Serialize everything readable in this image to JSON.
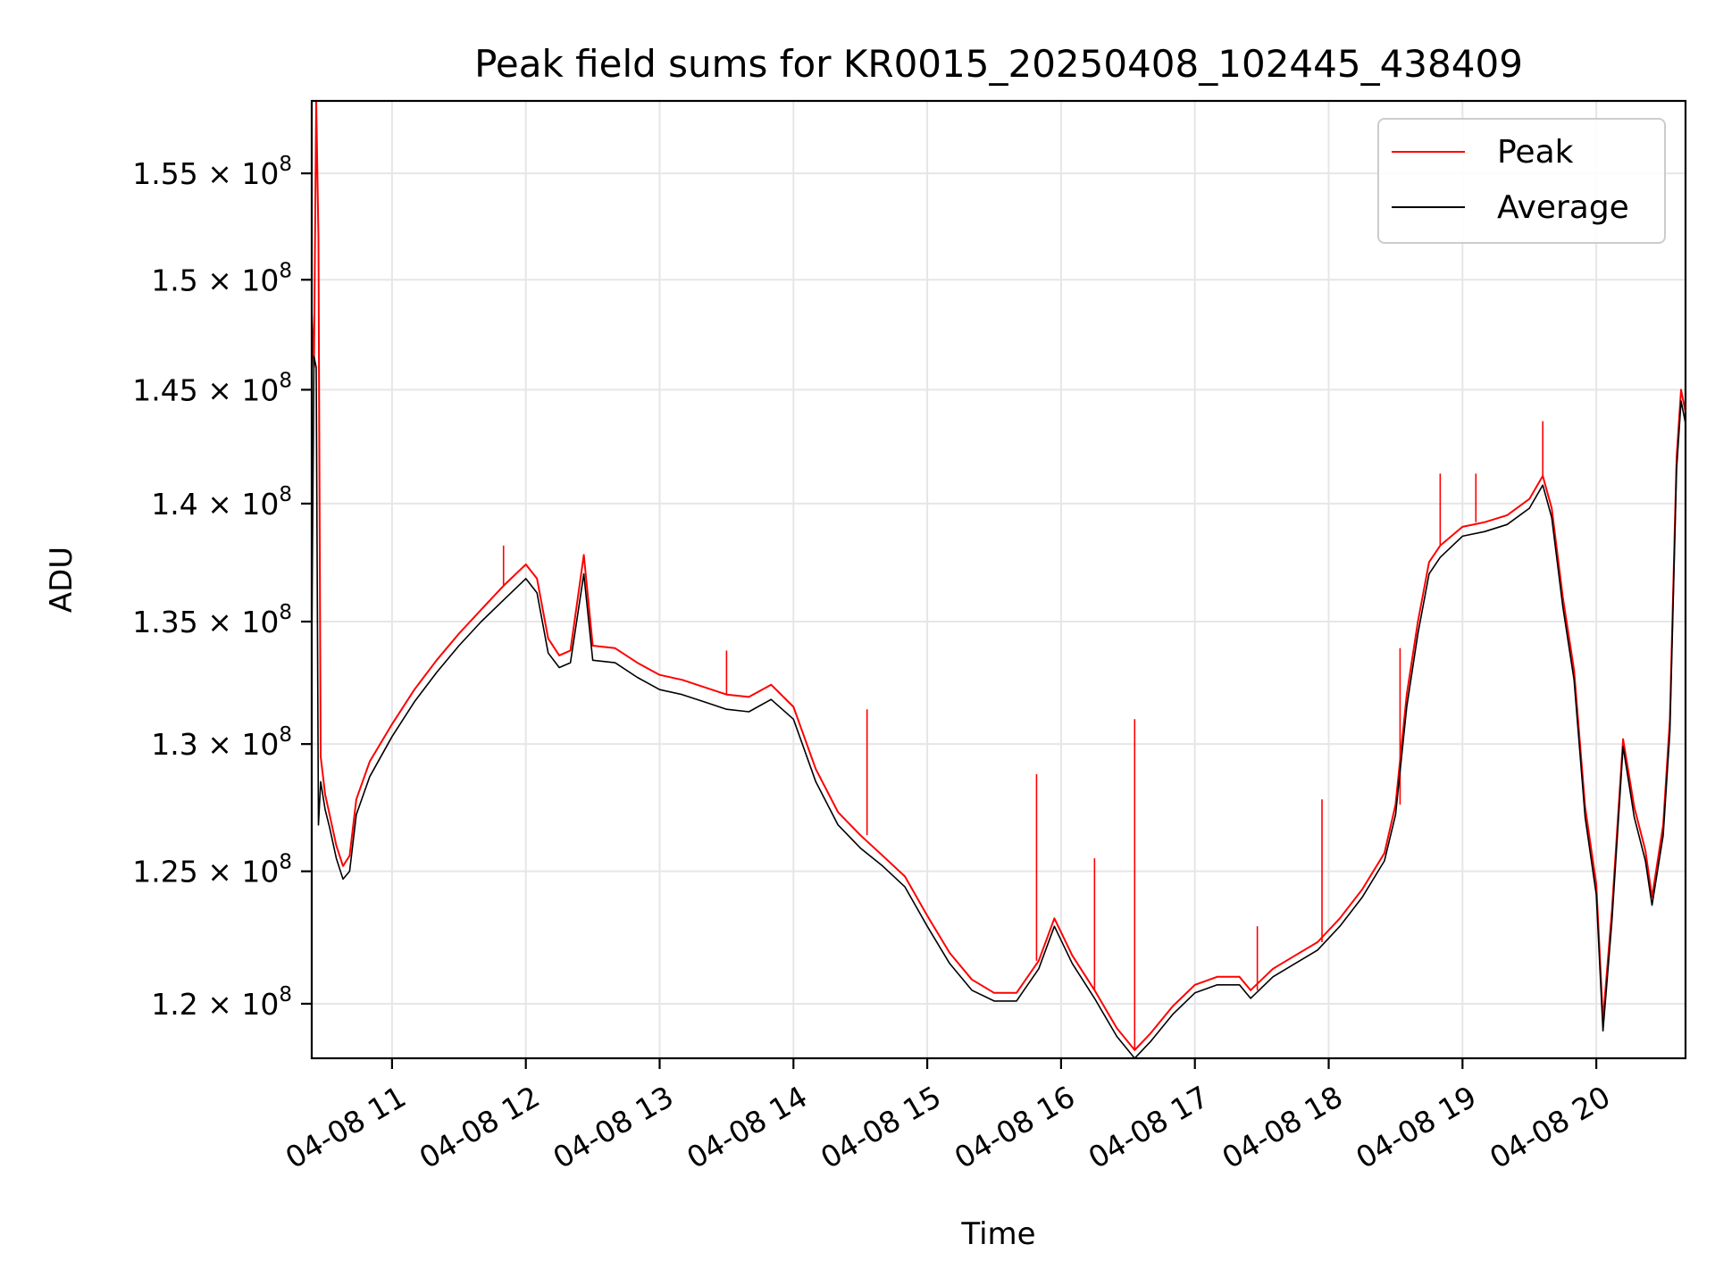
{
  "chart_data": {
    "type": "line",
    "title": "Peak field sums for KR0015_20250408_102445_438409",
    "xlabel": "Time",
    "ylabel": "ADU",
    "x_range": [
      "2025-04-08 10:24",
      "2025-04-08 20:40"
    ],
    "ylim": [
      118000000,
      158500000
    ],
    "y_scale": "log",
    "grid": true,
    "legend_position": "upper right",
    "x_ticks": [
      {
        "label": "04-08 11",
        "time": "2025-04-08 11:00"
      },
      {
        "label": "04-08 12",
        "time": "2025-04-08 12:00"
      },
      {
        "label": "04-08 13",
        "time": "2025-04-08 13:00"
      },
      {
        "label": "04-08 14",
        "time": "2025-04-08 14:00"
      },
      {
        "label": "04-08 15",
        "time": "2025-04-08 15:00"
      },
      {
        "label": "04-08 16",
        "time": "2025-04-08 16:00"
      },
      {
        "label": "04-08 17",
        "time": "2025-04-08 17:00"
      },
      {
        "label": "04-08 18",
        "time": "2025-04-08 18:00"
      },
      {
        "label": "04-08 19",
        "time": "2025-04-08 19:00"
      },
      {
        "label": "04-08 20",
        "time": "2025-04-08 20:00"
      }
    ],
    "y_ticks": [
      {
        "mantissa": "1.2",
        "exp": "8",
        "value": 120000000
      },
      {
        "mantissa": "1.25",
        "exp": "8",
        "value": 125000000
      },
      {
        "mantissa": "1.3",
        "exp": "8",
        "value": 130000000
      },
      {
        "mantissa": "1.35",
        "exp": "8",
        "value": 135000000
      },
      {
        "mantissa": "1.4",
        "exp": "8",
        "value": 140000000
      },
      {
        "mantissa": "1.45",
        "exp": "8",
        "value": 145000000
      },
      {
        "mantissa": "1.5",
        "exp": "8",
        "value": 150000000
      },
      {
        "mantissa": "1.55",
        "exp": "8",
        "value": 155000000
      }
    ],
    "series": [
      {
        "name": "Peak",
        "color": "#ff0000",
        "points": [
          [
            "2025-04-08 10:24",
            148500000
          ],
          [
            "2025-04-08 10:25",
            146000000
          ],
          [
            "2025-04-08 10:26",
            158500000
          ],
          [
            "2025-04-08 10:27",
            152000000
          ],
          [
            "2025-04-08 10:28",
            129500000
          ],
          [
            "2025-04-08 10:30",
            128000000
          ],
          [
            "2025-04-08 10:32",
            127200000
          ],
          [
            "2025-04-08 10:35",
            126000000
          ],
          [
            "2025-04-08 10:38",
            125200000
          ],
          [
            "2025-04-08 10:41",
            125600000
          ],
          [
            "2025-04-08 10:44",
            127800000
          ],
          [
            "2025-04-08 10:50",
            129300000
          ],
          [
            "2025-04-08 11:00",
            130800000
          ],
          [
            "2025-04-08 11:10",
            132200000
          ],
          [
            "2025-04-08 11:20",
            133400000
          ],
          [
            "2025-04-08 11:30",
            134500000
          ],
          [
            "2025-04-08 11:40",
            135500000
          ],
          [
            "2025-04-08 11:50",
            136500000
          ],
          [
            "2025-04-08 12:00",
            137400000
          ],
          [
            "2025-04-08 12:05",
            136800000
          ],
          [
            "2025-04-08 12:10",
            134300000
          ],
          [
            "2025-04-08 12:15",
            133600000
          ],
          [
            "2025-04-08 12:20",
            133800000
          ],
          [
            "2025-04-08 12:26",
            137800000
          ],
          [
            "2025-04-08 12:30",
            134000000
          ],
          [
            "2025-04-08 12:40",
            133900000
          ],
          [
            "2025-04-08 12:50",
            133300000
          ],
          [
            "2025-04-08 13:00",
            132800000
          ],
          [
            "2025-04-08 13:10",
            132600000
          ],
          [
            "2025-04-08 13:20",
            132300000
          ],
          [
            "2025-04-08 13:30",
            132000000
          ],
          [
            "2025-04-08 13:40",
            131900000
          ],
          [
            "2025-04-08 13:50",
            132400000
          ],
          [
            "2025-04-08 14:00",
            131500000
          ],
          [
            "2025-04-08 14:10",
            129000000
          ],
          [
            "2025-04-08 14:20",
            127300000
          ],
          [
            "2025-04-08 14:30",
            126400000
          ],
          [
            "2025-04-08 14:40",
            125600000
          ],
          [
            "2025-04-08 14:50",
            124800000
          ],
          [
            "2025-04-08 15:00",
            123300000
          ],
          [
            "2025-04-08 15:10",
            121900000
          ],
          [
            "2025-04-08 15:20",
            120900000
          ],
          [
            "2025-04-08 15:30",
            120400000
          ],
          [
            "2025-04-08 15:40",
            120400000
          ],
          [
            "2025-04-08 15:50",
            121600000
          ],
          [
            "2025-04-08 15:57",
            123200000
          ],
          [
            "2025-04-08 16:05",
            121800000
          ],
          [
            "2025-04-08 16:15",
            120500000
          ],
          [
            "2025-04-08 16:25",
            119100000
          ],
          [
            "2025-04-08 16:33",
            118300000
          ],
          [
            "2025-04-08 16:40",
            118900000
          ],
          [
            "2025-04-08 16:50",
            119900000
          ],
          [
            "2025-04-08 17:00",
            120700000
          ],
          [
            "2025-04-08 17:10",
            121000000
          ],
          [
            "2025-04-08 17:20",
            121000000
          ],
          [
            "2025-04-08 17:25",
            120500000
          ],
          [
            "2025-04-08 17:35",
            121300000
          ],
          [
            "2025-04-08 17:45",
            121800000
          ],
          [
            "2025-04-08 17:55",
            122300000
          ],
          [
            "2025-04-08 18:05",
            123200000
          ],
          [
            "2025-04-08 18:15",
            124300000
          ],
          [
            "2025-04-08 18:25",
            125700000
          ],
          [
            "2025-04-08 18:30",
            127600000
          ],
          [
            "2025-04-08 18:35",
            132000000
          ],
          [
            "2025-04-08 18:40",
            135000000
          ],
          [
            "2025-04-08 18:45",
            137500000
          ],
          [
            "2025-04-08 18:50",
            138200000
          ],
          [
            "2025-04-08 19:00",
            139000000
          ],
          [
            "2025-04-08 19:10",
            139200000
          ],
          [
            "2025-04-08 19:20",
            139500000
          ],
          [
            "2025-04-08 19:30",
            140200000
          ],
          [
            "2025-04-08 19:36",
            141200000
          ],
          [
            "2025-04-08 19:40",
            139800000
          ],
          [
            "2025-04-08 19:45",
            136000000
          ],
          [
            "2025-04-08 19:50",
            133000000
          ],
          [
            "2025-04-08 19:55",
            127500000
          ],
          [
            "2025-04-08 20:00",
            124500000
          ],
          [
            "2025-04-08 20:03",
            119400000
          ],
          [
            "2025-04-08 20:07",
            123500000
          ],
          [
            "2025-04-08 20:12",
            130200000
          ],
          [
            "2025-04-08 20:17",
            127500000
          ],
          [
            "2025-04-08 20:22",
            125800000
          ],
          [
            "2025-04-08 20:25",
            124000000
          ],
          [
            "2025-04-08 20:30",
            126800000
          ],
          [
            "2025-04-08 20:33",
            131000000
          ],
          [
            "2025-04-08 20:36",
            142000000
          ],
          [
            "2025-04-08 20:38",
            145000000
          ],
          [
            "2025-04-08 20:40",
            144000000
          ]
        ],
        "spikes": [
          [
            "2025-04-08 10:26",
            158500000
          ],
          [
            "2025-04-08 11:50",
            138200000
          ],
          [
            "2025-04-08 12:26",
            137800000
          ],
          [
            "2025-04-08 13:30",
            133800000
          ],
          [
            "2025-04-08 14:33",
            131400000
          ],
          [
            "2025-04-08 15:49",
            128800000
          ],
          [
            "2025-04-08 16:15",
            125500000
          ],
          [
            "2025-04-08 16:33",
            131000000
          ],
          [
            "2025-04-08 17:28",
            122900000
          ],
          [
            "2025-04-08 17:57",
            127800000
          ],
          [
            "2025-04-08 18:32",
            133900000
          ],
          [
            "2025-04-08 18:50",
            141300000
          ],
          [
            "2025-04-08 19:06",
            141300000
          ],
          [
            "2025-04-08 19:36",
            143600000
          ]
        ]
      },
      {
        "name": "Average",
        "color": "#000000",
        "points": [
          [
            "2025-04-08 10:24",
            134000000
          ],
          [
            "2025-04-08 10:25",
            146500000
          ],
          [
            "2025-04-08 10:26",
            146000000
          ],
          [
            "2025-04-08 10:27",
            126800000
          ],
          [
            "2025-04-08 10:28",
            128500000
          ],
          [
            "2025-04-08 10:30",
            127400000
          ],
          [
            "2025-04-08 10:32",
            126700000
          ],
          [
            "2025-04-08 10:35",
            125500000
          ],
          [
            "2025-04-08 10:38",
            124700000
          ],
          [
            "2025-04-08 10:41",
            125000000
          ],
          [
            "2025-04-08 10:44",
            127200000
          ],
          [
            "2025-04-08 10:50",
            128700000
          ],
          [
            "2025-04-08 11:00",
            130300000
          ],
          [
            "2025-04-08 11:10",
            131700000
          ],
          [
            "2025-04-08 11:20",
            132900000
          ],
          [
            "2025-04-08 11:30",
            134000000
          ],
          [
            "2025-04-08 11:40",
            135000000
          ],
          [
            "2025-04-08 11:50",
            135900000
          ],
          [
            "2025-04-08 12:00",
            136800000
          ],
          [
            "2025-04-08 12:05",
            136200000
          ],
          [
            "2025-04-08 12:10",
            133700000
          ],
          [
            "2025-04-08 12:15",
            133100000
          ],
          [
            "2025-04-08 12:20",
            133300000
          ],
          [
            "2025-04-08 12:26",
            137000000
          ],
          [
            "2025-04-08 12:30",
            133400000
          ],
          [
            "2025-04-08 12:40",
            133300000
          ],
          [
            "2025-04-08 12:50",
            132700000
          ],
          [
            "2025-04-08 13:00",
            132200000
          ],
          [
            "2025-04-08 13:10",
            132000000
          ],
          [
            "2025-04-08 13:20",
            131700000
          ],
          [
            "2025-04-08 13:30",
            131400000
          ],
          [
            "2025-04-08 13:40",
            131300000
          ],
          [
            "2025-04-08 13:50",
            131800000
          ],
          [
            "2025-04-08 14:00",
            131000000
          ],
          [
            "2025-04-08 14:10",
            128500000
          ],
          [
            "2025-04-08 14:20",
            126800000
          ],
          [
            "2025-04-08 14:30",
            125900000
          ],
          [
            "2025-04-08 14:40",
            125200000
          ],
          [
            "2025-04-08 14:50",
            124400000
          ],
          [
            "2025-04-08 15:00",
            122900000
          ],
          [
            "2025-04-08 15:10",
            121500000
          ],
          [
            "2025-04-08 15:20",
            120500000
          ],
          [
            "2025-04-08 15:30",
            120100000
          ],
          [
            "2025-04-08 15:40",
            120100000
          ],
          [
            "2025-04-08 15:50",
            121300000
          ],
          [
            "2025-04-08 15:57",
            122900000
          ],
          [
            "2025-04-08 16:05",
            121500000
          ],
          [
            "2025-04-08 16:15",
            120200000
          ],
          [
            "2025-04-08 16:25",
            118800000
          ],
          [
            "2025-04-08 16:33",
            118000000
          ],
          [
            "2025-04-08 16:40",
            118600000
          ],
          [
            "2025-04-08 16:50",
            119600000
          ],
          [
            "2025-04-08 17:00",
            120400000
          ],
          [
            "2025-04-08 17:10",
            120700000
          ],
          [
            "2025-04-08 17:20",
            120700000
          ],
          [
            "2025-04-08 17:25",
            120200000
          ],
          [
            "2025-04-08 17:35",
            121000000
          ],
          [
            "2025-04-08 17:45",
            121500000
          ],
          [
            "2025-04-08 17:55",
            122000000
          ],
          [
            "2025-04-08 18:05",
            122900000
          ],
          [
            "2025-04-08 18:15",
            124000000
          ],
          [
            "2025-04-08 18:25",
            125400000
          ],
          [
            "2025-04-08 18:30",
            127200000
          ],
          [
            "2025-04-08 18:35",
            131500000
          ],
          [
            "2025-04-08 18:40",
            134500000
          ],
          [
            "2025-04-08 18:45",
            137000000
          ],
          [
            "2025-04-08 18:50",
            137700000
          ],
          [
            "2025-04-08 19:00",
            138600000
          ],
          [
            "2025-04-08 19:10",
            138800000
          ],
          [
            "2025-04-08 19:20",
            139100000
          ],
          [
            "2025-04-08 19:30",
            139800000
          ],
          [
            "2025-04-08 19:36",
            140800000
          ],
          [
            "2025-04-08 19:40",
            139400000
          ],
          [
            "2025-04-08 19:45",
            135600000
          ],
          [
            "2025-04-08 19:50",
            132600000
          ],
          [
            "2025-04-08 19:55",
            127100000
          ],
          [
            "2025-04-08 20:00",
            124100000
          ],
          [
            "2025-04-08 20:03",
            119000000
          ],
          [
            "2025-04-08 20:07",
            123100000
          ],
          [
            "2025-04-08 20:12",
            129900000
          ],
          [
            "2025-04-08 20:17",
            127100000
          ],
          [
            "2025-04-08 20:22",
            125400000
          ],
          [
            "2025-04-08 20:25",
            123700000
          ],
          [
            "2025-04-08 20:30",
            126400000
          ],
          [
            "2025-04-08 20:33",
            130500000
          ],
          [
            "2025-04-08 20:36",
            141500000
          ],
          [
            "2025-04-08 20:38",
            144500000
          ],
          [
            "2025-04-08 20:40",
            143500000
          ]
        ],
        "spikes": []
      }
    ]
  }
}
